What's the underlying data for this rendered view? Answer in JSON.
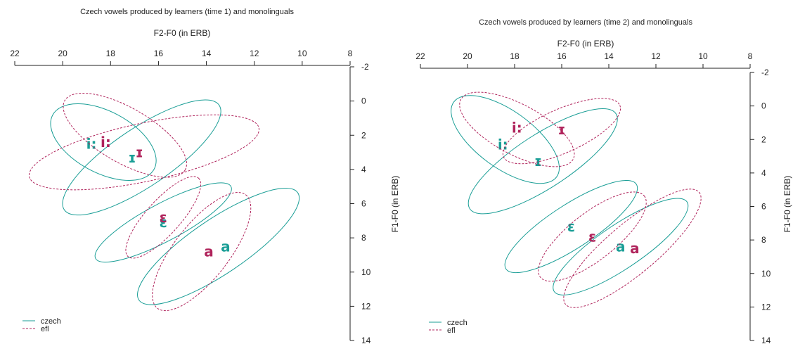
{
  "colors": {
    "czech": "#1a9e96",
    "efl": "#b0245c",
    "axis": "#222222"
  },
  "chart_data": [
    {
      "type": "scatter",
      "title": "Czech vowels produced by learners (time 1) and monolinguals",
      "xlabel": "F2-F0 (in ERB)",
      "ylabel": "F1-F0 (in ERB)",
      "xlim": [
        22,
        8
      ],
      "ylim": [
        -2,
        14
      ],
      "x_ticks": [
        "22",
        "20",
        "18",
        "16",
        "14",
        "12",
        "10",
        "8"
      ],
      "y_ticks": [
        "-2",
        "0",
        "2",
        "4",
        "6",
        "8",
        "10",
        "12",
        "14"
      ],
      "grid": false,
      "legend_position": "bottom-left",
      "legend": [
        {
          "label": "czech",
          "style": "solid"
        },
        {
          "label": "efl",
          "style": "dashed"
        }
      ],
      "series": [
        {
          "name": "czech",
          "points": [
            {
              "label": "i:",
              "x": 18.8,
              "y": 2.5
            },
            {
              "label": "ɪ",
              "x": 17.1,
              "y": 3.3
            },
            {
              "label": "ɛ",
              "x": 15.8,
              "y": 7.1
            },
            {
              "label": "a",
              "x": 13.2,
              "y": 8.5
            }
          ],
          "ellipses": [
            {
              "cx": 18.3,
              "cy": 2.4,
              "rx": 2.4,
              "ry": 1.8,
              "angle": 28
            },
            {
              "cx": 16.7,
              "cy": 3.3,
              "rx": 3.9,
              "ry": 1.7,
              "angle": -34
            },
            {
              "cx": 15.8,
              "cy": 7.1,
              "rx": 3.2,
              "ry": 1.1,
              "angle": -28
            },
            {
              "cx": 13.5,
              "cy": 8.5,
              "rx": 4.0,
              "ry": 1.6,
              "angle": -34
            }
          ]
        },
        {
          "name": "efl",
          "points": [
            {
              "label": "i:",
              "x": 18.2,
              "y": 2.4
            },
            {
              "label": "ɪ",
              "x": 16.8,
              "y": 3.0
            },
            {
              "label": "ɛ",
              "x": 15.8,
              "y": 6.8
            },
            {
              "label": "a",
              "x": 13.9,
              "y": 8.8
            }
          ],
          "ellipses": [
            {
              "cx": 17.4,
              "cy": 2.0,
              "rx": 2.9,
              "ry": 1.6,
              "angle": 30
            },
            {
              "cx": 16.6,
              "cy": 3.0,
              "rx": 4.9,
              "ry": 1.7,
              "angle": -12
            },
            {
              "cx": 15.8,
              "cy": 6.8,
              "rx": 2.2,
              "ry": 1.0,
              "angle": -48
            },
            {
              "cx": 14.2,
              "cy": 8.8,
              "rx": 3.0,
              "ry": 1.6,
              "angle": -52
            }
          ]
        }
      ]
    },
    {
      "type": "scatter",
      "title": "Czech vowels produced by learners (time 2) and monolinguals",
      "xlabel": "F2-F0 (in ERB)",
      "ylabel": "F1-F0 (in ERB)",
      "xlim": [
        22,
        8
      ],
      "ylim": [
        -2,
        14
      ],
      "x_ticks": [
        "22",
        "20",
        "18",
        "16",
        "14",
        "12",
        "10",
        "8"
      ],
      "y_ticks": [
        "-2",
        "0",
        "2",
        "4",
        "6",
        "8",
        "10",
        "12",
        "14"
      ],
      "grid": false,
      "legend_position": "bottom-left",
      "legend": [
        {
          "label": "czech",
          "style": "solid"
        },
        {
          "label": "efl",
          "style": "dashed"
        }
      ],
      "series": [
        {
          "name": "czech",
          "points": [
            {
              "label": "i:",
              "x": 18.5,
              "y": 2.3
            },
            {
              "label": "ɪ",
              "x": 17.0,
              "y": 3.3
            },
            {
              "label": "ɛ",
              "x": 15.6,
              "y": 7.2
            },
            {
              "label": "a",
              "x": 13.5,
              "y": 8.4
            }
          ],
          "ellipses": [
            {
              "cx": 18.4,
              "cy": 2.0,
              "rx": 2.7,
              "ry": 1.7,
              "angle": 36
            },
            {
              "cx": 16.8,
              "cy": 3.3,
              "rx": 3.7,
              "ry": 1.6,
              "angle": -33
            },
            {
              "cx": 15.6,
              "cy": 7.2,
              "rx": 3.3,
              "ry": 1.3,
              "angle": -33
            },
            {
              "cx": 13.5,
              "cy": 8.4,
              "rx": 3.4,
              "ry": 1.3,
              "angle": -34
            }
          ]
        },
        {
          "name": "efl",
          "points": [
            {
              "label": "i:",
              "x": 17.9,
              "y": 1.3
            },
            {
              "label": "ɪ",
              "x": 16.0,
              "y": 1.4
            },
            {
              "label": "ɛ",
              "x": 14.7,
              "y": 7.8
            },
            {
              "label": "a",
              "x": 12.9,
              "y": 8.5
            }
          ],
          "ellipses": [
            {
              "cx": 17.9,
              "cy": 1.4,
              "rx": 2.7,
              "ry": 1.5,
              "angle": 28
            },
            {
              "cx": 16.0,
              "cy": 1.5,
              "rx": 2.7,
              "ry": 1.3,
              "angle": -24
            },
            {
              "cx": 14.7,
              "cy": 7.8,
              "rx": 2.8,
              "ry": 1.4,
              "angle": -38
            },
            {
              "cx": 13.0,
              "cy": 8.5,
              "rx": 3.7,
              "ry": 1.5,
              "angle": -40
            }
          ]
        }
      ]
    }
  ]
}
